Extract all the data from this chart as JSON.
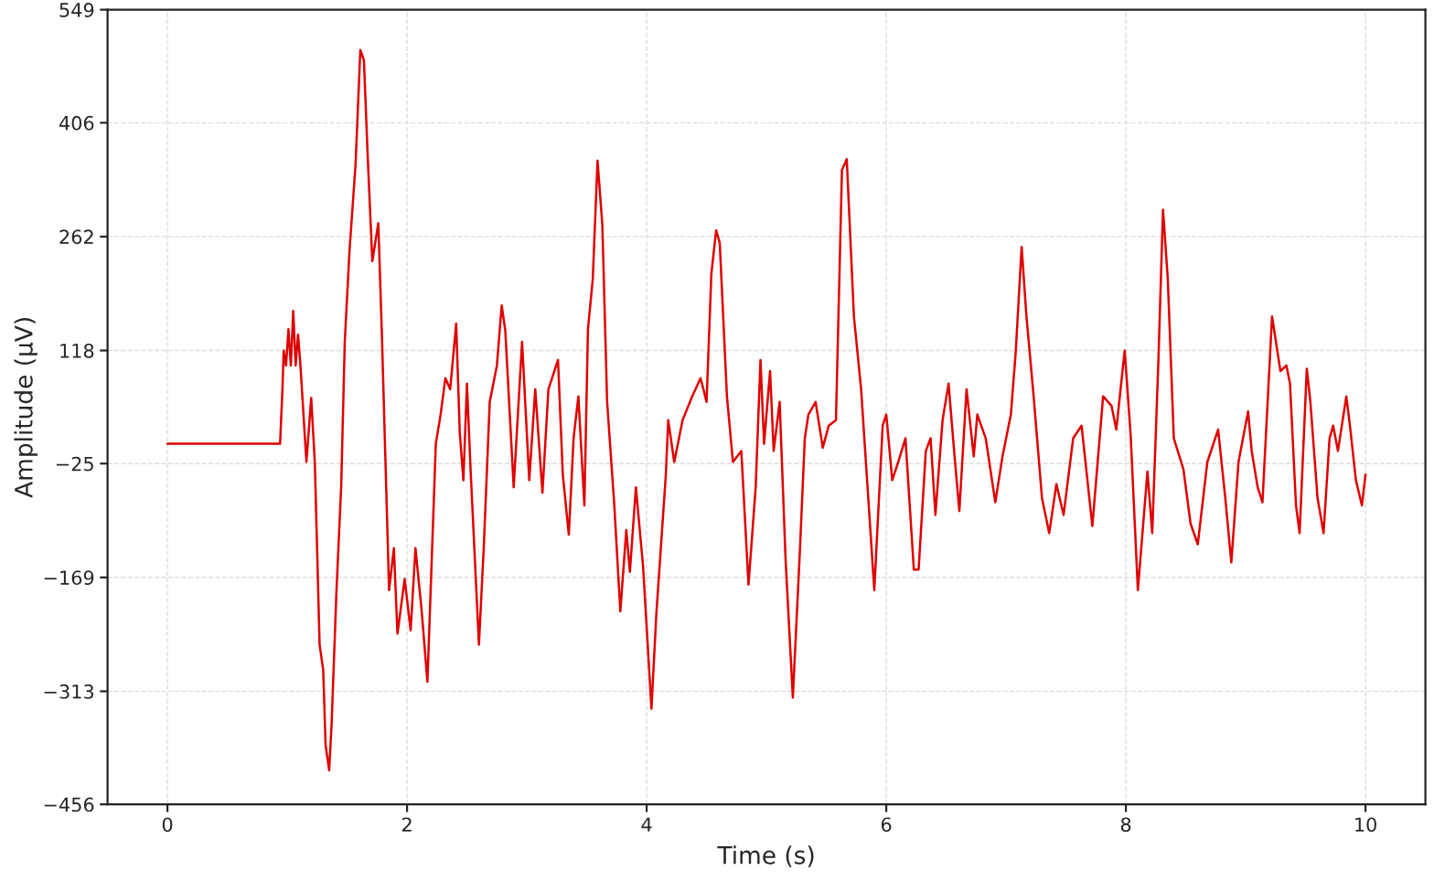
{
  "chart_data": {
    "type": "line",
    "xlabel": "Time (s)",
    "ylabel": "Amplitude (µV)",
    "xlim": [
      -0.5,
      10.5
    ],
    "xticks": [
      0,
      2,
      4,
      6,
      8,
      10
    ],
    "ylim": [
      -456,
      549
    ],
    "yticks": [
      {
        "value": -456,
        "label": "−456"
      },
      {
        "value": -313,
        "label": "−313"
      },
      {
        "value": -169,
        "label": "−169"
      },
      {
        "value": -25,
        "label": "−25"
      },
      118,
      262,
      406,
      549
    ],
    "grid": true,
    "marker": "none",
    "line_style": "solid",
    "series": [
      {
        "color": "#e00000",
        "x": [
          0,
          0.94,
          0.96,
          0.97,
          0.99,
          1.01,
          1.03,
          1.05,
          1.07,
          1.09,
          1.11,
          1.16,
          1.2,
          1.23,
          1.27,
          1.3,
          1.32,
          1.35,
          1.37,
          1.41,
          1.45,
          1.48,
          1.52,
          1.57,
          1.61,
          1.64,
          1.67,
          1.71,
          1.76,
          1.79,
          1.85,
          1.89,
          1.92,
          1.98,
          2.03,
          2.07,
          2.12,
          2.17,
          2.24,
          2.28,
          2.32,
          2.36,
          2.41,
          2.44,
          2.47,
          2.5,
          2.53,
          2.6,
          2.64,
          2.69,
          2.75,
          2.79,
          2.82,
          2.89,
          2.96,
          3.02,
          3.07,
          3.13,
          3.18,
          3.26,
          3.3,
          3.35,
          3.39,
          3.43,
          3.48,
          3.51,
          3.55,
          3.59,
          3.63,
          3.67,
          3.73,
          3.78,
          3.83,
          3.86,
          3.91,
          3.97,
          4.04,
          4.08,
          4.16,
          4.18,
          4.23,
          4.3,
          4.38,
          4.45,
          4.5,
          4.54,
          4.58,
          4.61,
          4.67,
          4.72,
          4.79,
          4.85,
          4.91,
          4.95,
          4.98,
          5.03,
          5.06,
          5.11,
          5.16,
          5.22,
          5.28,
          5.32,
          5.35,
          5.41,
          5.47,
          5.52,
          5.58,
          5.63,
          5.67,
          5.73,
          5.79,
          5.9,
          5.97,
          6.0,
          6.05,
          6.1,
          6.16,
          6.23,
          6.27,
          6.33,
          6.37,
          6.41,
          6.47,
          6.52,
          6.57,
          6.61,
          6.67,
          6.73,
          6.76,
          6.83,
          6.91,
          6.97,
          7.04,
          7.08,
          7.13,
          7.17,
          7.23,
          7.3,
          7.36,
          7.42,
          7.48,
          7.56,
          7.63,
          7.72,
          7.81,
          7.88,
          7.92,
          7.99,
          8.04,
          8.1,
          8.18,
          8.22,
          8.27,
          8.31,
          8.35,
          8.4,
          8.48,
          8.54,
          8.6,
          8.68,
          8.77,
          8.83,
          8.88,
          8.94,
          9.02,
          9.05,
          9.1,
          9.14,
          9.22,
          9.29,
          9.34,
          9.37,
          9.42,
          9.45,
          9.51,
          9.54,
          9.6,
          9.65,
          9.7,
          9.73,
          9.77,
          9.84,
          9.87,
          9.92,
          9.97,
          10.0
        ],
        "values": [
          0,
          0,
          69,
          118,
          99,
          145,
          99,
          168,
          99,
          138,
          99,
          -23,
          58,
          -23,
          -254,
          -286,
          -381,
          -413,
          -355,
          -189,
          -55,
          129,
          245,
          353,
          498,
          485,
          369,
          231,
          279,
          138,
          -185,
          -132,
          -240,
          -171,
          -236,
          -132,
          -208,
          -301,
          0,
          37,
          83,
          69,
          152,
          14,
          -46,
          76,
          -32,
          -254,
          -132,
          53,
          99,
          175,
          143,
          -55,
          129,
          -46,
          69,
          -62,
          69,
          106,
          -39,
          -115,
          7,
          60,
          -78,
          145,
          208,
          358,
          277,
          53,
          -78,
          -212,
          -109,
          -162,
          -55,
          -155,
          -335,
          -217,
          -39,
          30,
          -23,
          30,
          60,
          83,
          53,
          215,
          270,
          254,
          60,
          -23,
          -9,
          -178,
          -55,
          106,
          0,
          92,
          -9,
          53,
          -148,
          -321,
          -132,
          7,
          37,
          53,
          -5,
          23,
          30,
          346,
          360,
          161,
          69,
          -185,
          23,
          37,
          -46,
          -23,
          7,
          -159,
          -159,
          -9,
          7,
          -90,
          30,
          76,
          -16,
          -85,
          69,
          -16,
          37,
          7,
          -74,
          -16,
          37,
          115,
          249,
          161,
          60,
          -69,
          -113,
          -51,
          -90,
          7,
          23,
          -104,
          60,
          48,
          18,
          118,
          11,
          -185,
          -35,
          -113,
          99,
          296,
          208,
          7,
          -32,
          -101,
          -127,
          -23,
          18,
          -69,
          -150,
          -23,
          41,
          -9,
          -55,
          -74,
          161,
          92,
          99,
          76,
          -78,
          -113,
          95,
          53,
          -69,
          -113,
          7,
          23,
          -9,
          60,
          23,
          -46,
          -78,
          -39
        ]
      }
    ]
  }
}
